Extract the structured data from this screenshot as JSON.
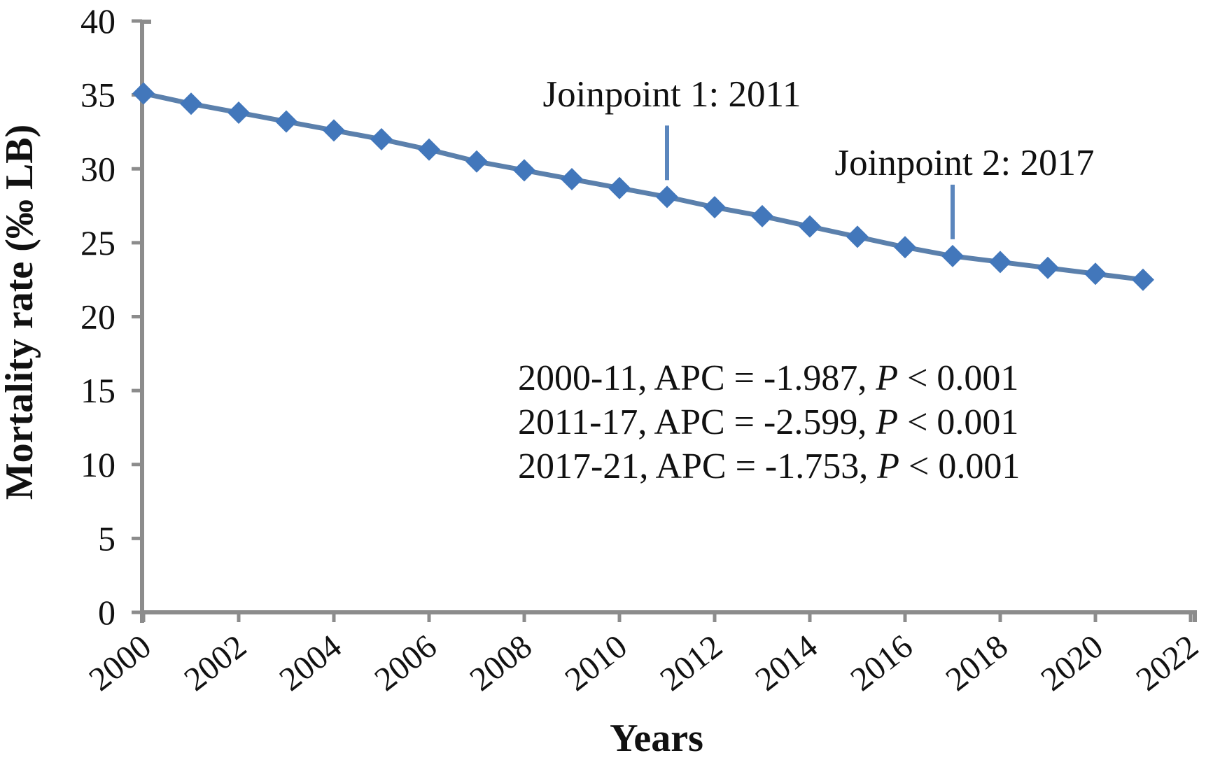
{
  "figure": {
    "background": "#ffffff"
  },
  "chart_data": {
    "type": "line",
    "title": "",
    "xlabel": "Years",
    "ylabel": "Mortality rate (‰ LB)",
    "x": [
      2000,
      2001,
      2002,
      2003,
      2004,
      2005,
      2006,
      2007,
      2008,
      2009,
      2010,
      2011,
      2012,
      2013,
      2014,
      2015,
      2016,
      2017,
      2018,
      2019,
      2020,
      2021
    ],
    "series": [
      {
        "name": "Mortality rate (‰ LB)",
        "values": [
          35.1,
          34.4,
          33.8,
          33.2,
          32.6,
          32.0,
          31.3,
          30.5,
          29.9,
          29.3,
          28.7,
          28.1,
          27.4,
          26.8,
          26.1,
          25.4,
          24.7,
          24.1,
          23.7,
          23.3,
          22.9,
          22.5
        ]
      }
    ],
    "xlim": [
      2000,
      2022
    ],
    "ylim": [
      0,
      40
    ],
    "x_ticks": [
      2000,
      2002,
      2004,
      2006,
      2008,
      2010,
      2012,
      2014,
      2016,
      2018,
      2020,
      2022
    ],
    "y_ticks": [
      0,
      5,
      10,
      15,
      20,
      25,
      30,
      35,
      40
    ],
    "grid": false,
    "legend": "none",
    "marker": "diamond",
    "annotations": [
      {
        "label": "Joinpoint 1: 2011",
        "year": 2011
      },
      {
        "label": "Joinpoint 2: 2017",
        "year": 2017
      }
    ],
    "stats_lines": [
      {
        "pre": "2000-11, APC = -1.987, ",
        "italic": "P",
        "post": " < 0.001"
      },
      {
        "pre": "2011-17, APC = -2.599, ",
        "italic": "P",
        "post": " < 0.001"
      },
      {
        "pre": "2017-21, APC = -1.753, ",
        "italic": "P",
        "post": " < 0.001"
      }
    ],
    "colors": {
      "axis": "#8c8c8c",
      "text": "#111111",
      "line": "#5b80ac",
      "marker": "#4277bb",
      "annotation_line": "#5b86bd"
    }
  }
}
